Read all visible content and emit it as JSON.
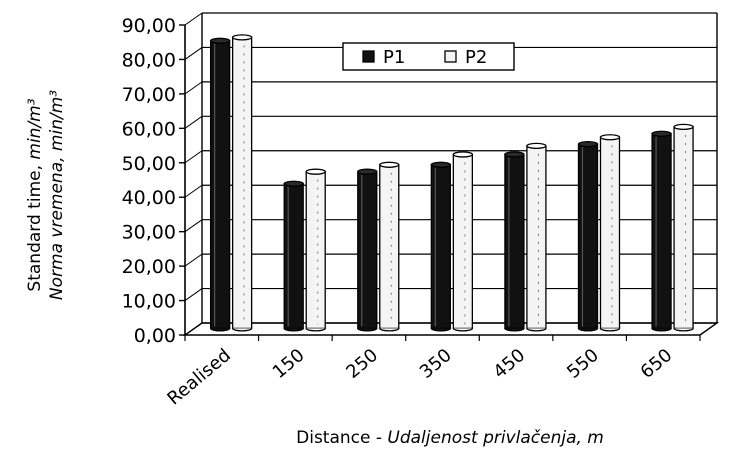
{
  "chart_data": {
    "type": "bar",
    "categories": [
      "Realised",
      "150",
      "250",
      "350",
      "450",
      "550",
      "650"
    ],
    "series": [
      {
        "name": "P1",
        "values": [
          83.5,
          42.0,
          45.5,
          47.5,
          50.5,
          53.5,
          56.5
        ],
        "color": "#111111"
      },
      {
        "name": "P2",
        "values": [
          84.5,
          45.5,
          47.5,
          50.5,
          53.0,
          55.5,
          58.5
        ],
        "color": "#f4f4f4"
      }
    ],
    "y_ticks": [
      "0,00",
      "10,00",
      "20,00",
      "30,00",
      "40,00",
      "50,00",
      "60,00",
      "70,00",
      "80,00",
      "90,00"
    ],
    "ylim": [
      0,
      90
    ],
    "ylabel_line1": "Standard time,",
    "ylabel_line1_unit": "min/m³",
    "ylabel_line2": "Norma vremena, min/m³",
    "xlabel_plain": "Distance - ",
    "xlabel_italic": "Udaljenost privlačenja, m",
    "grid": true,
    "legend_position": "top-center"
  }
}
